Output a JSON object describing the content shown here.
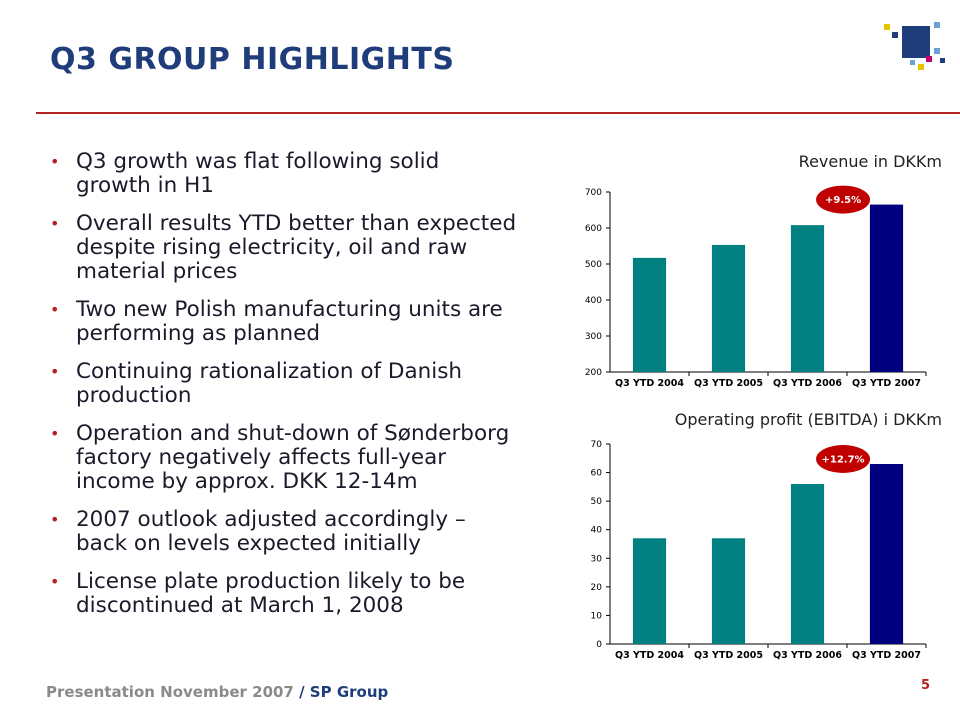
{
  "header": {
    "title": "Q3 GROUP HIGHLIGHTS"
  },
  "colors": {
    "teal": "#008080",
    "navy": "#00007f",
    "badge": "#c00000",
    "accent_red": "#b22222",
    "title_blue": "#1f3d7a"
  },
  "bullets": [
    "Q3 growth was flat following solid growth in H1",
    "Overall results YTD better than expected despite rising electricity, oil and raw material prices",
    "Two new Polish manufacturing units are performing as planned",
    "Continuing rationalization of Danish production",
    "Operation and shut-down of Sønderborg factory negatively affects full-year income by approx. DKK 12-14m",
    "2007 outlook adjusted accordingly – back on levels expected initially",
    "License plate production likely to be discontinued at March 1, 2008"
  ],
  "chart_data": [
    {
      "type": "bar",
      "title": "Revenue in DKKm",
      "categories": [
        "Q3 YTD 2004",
        "Q3 YTD 2005",
        "Q3 YTD 2006",
        "Q3 YTD 2007"
      ],
      "values": [
        517,
        553,
        608,
        665
      ],
      "ylim": [
        200,
        700
      ],
      "yticks": [
        200,
        300,
        400,
        500,
        600,
        700
      ],
      "annotation": "+9.5%",
      "grid": false
    },
    {
      "type": "bar",
      "title": "Operating profit (EBITDA) i DKKm",
      "categories": [
        "Q3 YTD 2004",
        "Q3 YTD 2005",
        "Q3 YTD 2006",
        "Q3 YTD 2007"
      ],
      "values": [
        37,
        37,
        56,
        63
      ],
      "ylim": [
        0,
        70
      ],
      "yticks": [
        0,
        10,
        20,
        30,
        40,
        50,
        60,
        70
      ],
      "annotation": "+12.7%",
      "grid": false
    }
  ],
  "footer": {
    "text": "Presentation November 2007 ",
    "group": "/ SP Group",
    "page": "5"
  }
}
